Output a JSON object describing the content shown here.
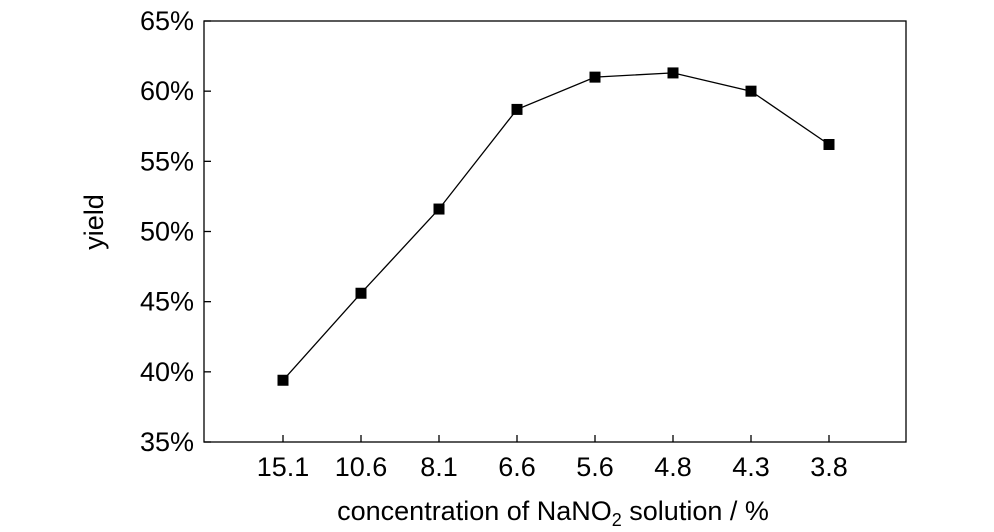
{
  "chart_data": {
    "type": "line",
    "xlabel_main": "concentration of NaNO",
    "xlabel_subscript": "2",
    "xlabel_tail": " solution / %",
    "ylabel": "yield",
    "categories": [
      "15.1",
      "10.6",
      "8.1",
      "6.6",
      "5.6",
      "4.8",
      "4.3",
      "3.8"
    ],
    "series": [
      {
        "values": [
          39.4,
          45.6,
          51.6,
          58.7,
          61.0,
          61.3,
          60.0,
          56.2
        ]
      }
    ],
    "ylim": [
      35,
      65
    ],
    "yticks": [
      35,
      40,
      45,
      50,
      55,
      60,
      65
    ],
    "ytick_labels": [
      "35%",
      "40%",
      "45%",
      "50%",
      "55%",
      "60%",
      "65%"
    ],
    "grid": false,
    "marker": "square",
    "colors": {
      "line": "#000000",
      "marker": "#000000",
      "axis": "#000000"
    }
  }
}
